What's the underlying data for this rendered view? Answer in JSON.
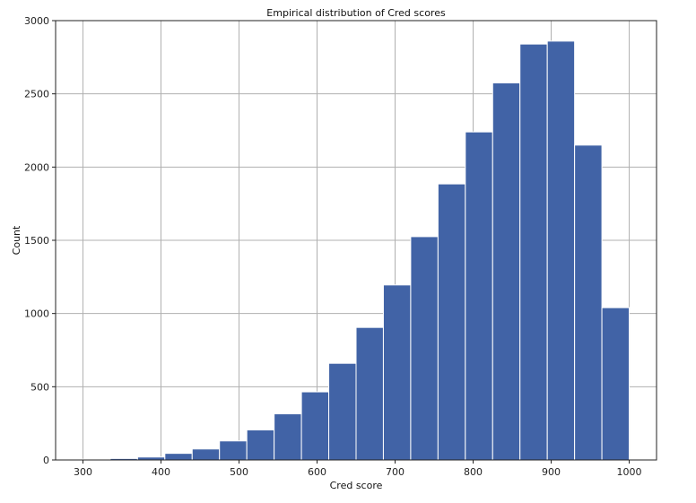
{
  "chart_data": {
    "type": "bar",
    "title": "Empirical distribution of Cred scores",
    "xlabel": "Cred score",
    "ylabel": "Count",
    "xlim": [
      265,
      1035
    ],
    "ylim": [
      0,
      3000
    ],
    "xticks": [
      300,
      400,
      500,
      600,
      700,
      800,
      900,
      1000
    ],
    "yticks": [
      0,
      500,
      1000,
      1500,
      2000,
      2500,
      3000
    ],
    "grid": true,
    "bar_color": "#4163a6",
    "bins": [
      {
        "x0": 300,
        "x1": 335,
        "count": 5
      },
      {
        "x0": 335,
        "x1": 370,
        "count": 10
      },
      {
        "x0": 370,
        "x1": 405,
        "count": 20
      },
      {
        "x0": 405,
        "x1": 440,
        "count": 45
      },
      {
        "x0": 440,
        "x1": 475,
        "count": 75
      },
      {
        "x0": 475,
        "x1": 510,
        "count": 130
      },
      {
        "x0": 510,
        "x1": 545,
        "count": 205
      },
      {
        "x0": 545,
        "x1": 580,
        "count": 315
      },
      {
        "x0": 580,
        "x1": 615,
        "count": 465
      },
      {
        "x0": 615,
        "x1": 650,
        "count": 660
      },
      {
        "x0": 650,
        "x1": 685,
        "count": 905
      },
      {
        "x0": 685,
        "x1": 720,
        "count": 1195
      },
      {
        "x0": 720,
        "x1": 755,
        "count": 1525
      },
      {
        "x0": 755,
        "x1": 790,
        "count": 1885
      },
      {
        "x0": 790,
        "x1": 825,
        "count": 2240
      },
      {
        "x0": 825,
        "x1": 860,
        "count": 2575
      },
      {
        "x0": 860,
        "x1": 895,
        "count": 2840
      },
      {
        "x0": 895,
        "x1": 930,
        "count": 2860
      },
      {
        "x0": 930,
        "x1": 965,
        "count": 2150
      },
      {
        "x0": 965,
        "x1": 1000,
        "count": 1040
      },
      {
        "x0": 1000,
        "x1": 1035,
        "count": 2
      }
    ]
  }
}
